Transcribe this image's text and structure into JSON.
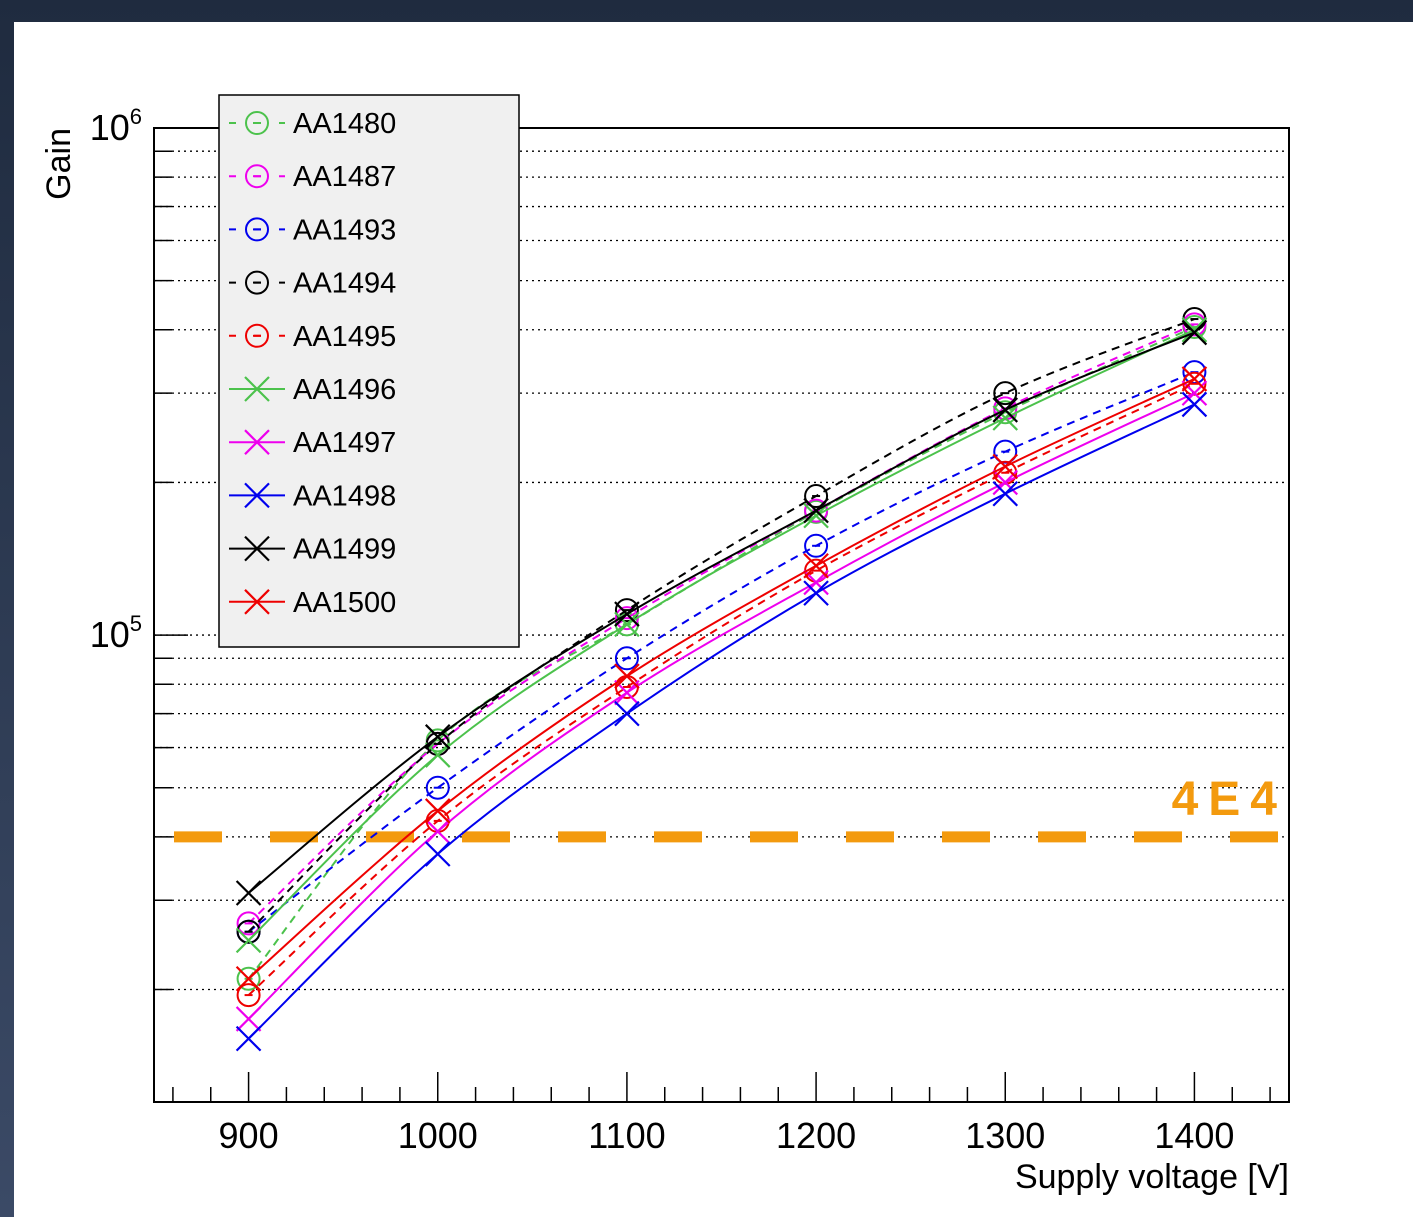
{
  "chart_data": {
    "type": "line",
    "xlabel": "Supply voltage [V]",
    "ylabel": "Gain",
    "x_ticks": [
      "900",
      "1000",
      "1100",
      "1200",
      "1300",
      "1400"
    ],
    "y_tick_labels": [
      {
        "base": "10",
        "exp": "6"
      },
      {
        "base": "10",
        "exp": "5"
      }
    ],
    "xlim": [
      850,
      1450
    ],
    "ylim": [
      12000,
      1000000
    ],
    "yscale": "log",
    "grid": "horizontal dotted",
    "legend_position": "top-left",
    "x": [
      900,
      1000,
      1100,
      1200,
      1300,
      1400
    ],
    "series": [
      {
        "name": "AA1480",
        "color": "#4cc24c",
        "marker": "circle",
        "line": "dashed",
        "values": [
          21000,
          62000,
          105000,
          175000,
          275000,
          405000
        ]
      },
      {
        "name": "AA1487",
        "color": "#ee00ee",
        "marker": "circle",
        "line": "dashed",
        "values": [
          27000,
          61000,
          108000,
          176000,
          280000,
          410000
        ]
      },
      {
        "name": "AA1493",
        "color": "#0000ee",
        "marker": "circle",
        "line": "dashed",
        "values": [
          26000,
          50000,
          90000,
          150000,
          230000,
          330000
        ]
      },
      {
        "name": "AA1494",
        "color": "#000000",
        "marker": "circle",
        "line": "dashed",
        "values": [
          26000,
          61000,
          112000,
          188000,
          300000,
          420000
        ]
      },
      {
        "name": "AA1495",
        "color": "#ee0000",
        "marker": "circle",
        "line": "dashed",
        "values": [
          19500,
          43000,
          79000,
          134000,
          209000,
          313000
        ]
      },
      {
        "name": "AA1496",
        "color": "#4cc24c",
        "marker": "x",
        "line": "solid",
        "values": [
          25000,
          58000,
          105000,
          172000,
          268000,
          400000
        ]
      },
      {
        "name": "AA1497",
        "color": "#ee00ee",
        "marker": "x",
        "line": "solid",
        "values": [
          17500,
          41000,
          77000,
          127000,
          200000,
          300000
        ]
      },
      {
        "name": "AA1498",
        "color": "#0000ee",
        "marker": "x",
        "line": "solid",
        "values": [
          16000,
          37000,
          70000,
          121000,
          190000,
          285000
        ]
      },
      {
        "name": "AA1499",
        "color": "#000000",
        "marker": "x",
        "line": "solid",
        "values": [
          31000,
          63000,
          110000,
          176000,
          278000,
          395000
        ]
      },
      {
        "name": "AA1500",
        "color": "#ee0000",
        "marker": "x",
        "line": "solid",
        "values": [
          21000,
          45000,
          83000,
          137000,
          215000,
          320000
        ]
      }
    ],
    "threshold": {
      "value": 40000,
      "label": "4E4",
      "color": "#f39a0e"
    }
  }
}
